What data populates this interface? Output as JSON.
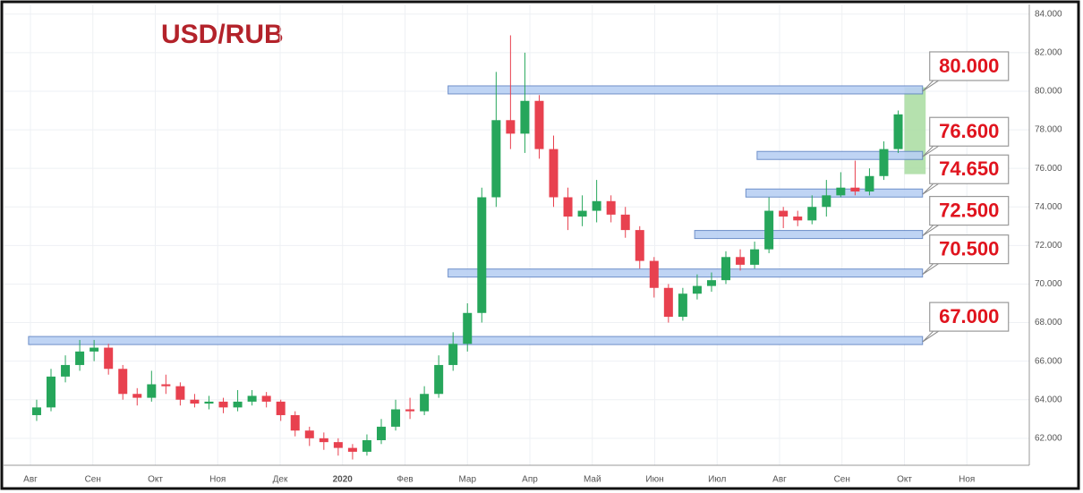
{
  "chart_data": {
    "type": "candlestick",
    "title": "USD/RUB",
    "up_color": "#26a65b",
    "down_color": "#e8414f",
    "x": [
      0.1,
      0.33,
      0.56,
      0.79,
      1.02,
      1.25,
      1.48,
      1.71,
      1.94,
      2.17,
      2.4,
      2.63,
      2.86,
      3.09,
      3.32,
      3.55,
      3.78,
      4.01,
      4.24,
      4.47,
      4.7,
      4.93,
      5.16,
      5.39,
      5.62,
      5.85,
      6.08,
      6.31,
      6.54,
      6.77,
      7.0,
      7.23,
      7.46,
      7.69,
      7.92,
      8.15,
      8.38,
      8.61,
      8.84,
      9.07,
      9.3,
      9.53,
      9.76,
      9.99,
      10.22,
      10.45,
      10.68,
      10.91,
      11.14,
      11.37,
      11.6,
      11.83,
      12.06,
      12.29,
      12.52,
      12.75,
      12.98,
      13.21,
      13.44,
      13.67,
      13.9
    ],
    "open": [
      63.2,
      63.6,
      65.2,
      65.8,
      66.5,
      66.7,
      65.6,
      64.3,
      64.1,
      64.8,
      64.7,
      64.0,
      63.8,
      63.9,
      63.6,
      63.9,
      64.2,
      63.9,
      63.2,
      62.4,
      62.0,
      61.8,
      61.5,
      61.3,
      61.9,
      62.6,
      63.5,
      63.4,
      64.3,
      65.8,
      66.9,
      68.5,
      74.5,
      78.5,
      77.8,
      79.5,
      77.0,
      74.5,
      73.5,
      73.8,
      74.3,
      73.6,
      72.8,
      71.2,
      69.8,
      68.3,
      69.5,
      69.9,
      70.2,
      71.4,
      71.0,
      71.8,
      73.8,
      73.5,
      73.3,
      74.0,
      74.6,
      75.0,
      74.8,
      75.6,
      77.0
    ],
    "high": [
      64.0,
      65.6,
      66.3,
      67.1,
      67.1,
      66.9,
      65.8,
      64.6,
      65.5,
      65.3,
      64.9,
      64.3,
      64.2,
      64.1,
      64.5,
      64.5,
      64.4,
      64.0,
      63.4,
      62.6,
      62.3,
      62.0,
      61.7,
      62.2,
      63.0,
      64.0,
      64.1,
      64.7,
      66.3,
      67.5,
      69.0,
      75.0,
      81.0,
      82.9,
      82.0,
      79.8,
      77.7,
      75.0,
      74.6,
      75.4,
      74.6,
      74.0,
      73.0,
      71.4,
      70.0,
      69.8,
      70.5,
      70.6,
      71.7,
      71.8,
      72.2,
      74.5,
      74.0,
      73.8,
      74.6,
      75.4,
      75.8,
      76.4,
      76.0,
      77.4,
      79.0
    ],
    "low": [
      62.9,
      63.4,
      64.9,
      65.5,
      66.0,
      65.3,
      64.0,
      63.7,
      63.9,
      64.3,
      63.7,
      63.6,
      63.5,
      63.3,
      63.4,
      63.7,
      63.6,
      62.9,
      62.1,
      61.6,
      61.4,
      61.1,
      60.9,
      61.1,
      61.7,
      62.4,
      63.0,
      63.2,
      64.1,
      65.5,
      66.5,
      68.0,
      74.0,
      77.0,
      76.8,
      76.5,
      74.0,
      72.8,
      73.0,
      73.2,
      73.2,
      72.4,
      70.8,
      69.3,
      68.0,
      68.1,
      69.2,
      69.6,
      70.0,
      70.7,
      70.8,
      71.6,
      72.9,
      73.0,
      73.1,
      73.5,
      74.5,
      74.6,
      74.6,
      75.4,
      76.8
    ],
    "close": [
      63.6,
      65.2,
      65.8,
      66.5,
      66.7,
      65.6,
      64.3,
      64.1,
      64.8,
      64.7,
      64.0,
      63.8,
      63.9,
      63.6,
      63.9,
      64.2,
      63.9,
      63.2,
      62.4,
      62.0,
      61.8,
      61.5,
      61.3,
      61.9,
      62.6,
      63.5,
      63.4,
      64.3,
      65.8,
      66.9,
      68.5,
      74.5,
      78.5,
      77.8,
      79.5,
      77.0,
      74.5,
      73.5,
      73.8,
      74.3,
      73.6,
      72.8,
      71.2,
      69.8,
      68.3,
      69.5,
      69.9,
      70.2,
      71.4,
      71.0,
      71.8,
      73.8,
      73.5,
      73.3,
      74.0,
      74.6,
      75.0,
      74.8,
      75.6,
      77.0,
      78.8
    ],
    "xlim": [
      -0.43,
      16.0
    ],
    "xticks": [
      {
        "value": 0,
        "label": "Авг"
      },
      {
        "value": 1,
        "label": "Сен"
      },
      {
        "value": 2,
        "label": "Окт"
      },
      {
        "value": 3,
        "label": "Ноя"
      },
      {
        "value": 4,
        "label": "Дек"
      },
      {
        "value": 5,
        "label": "2020"
      },
      {
        "value": 6,
        "label": "Фев"
      },
      {
        "value": 7,
        "label": "Мар"
      },
      {
        "value": 8,
        "label": "Апр"
      },
      {
        "value": 9,
        "label": "Май"
      },
      {
        "value": 10,
        "label": "Июн"
      },
      {
        "value": 11,
        "label": "Июл"
      },
      {
        "value": 12,
        "label": "Авг"
      },
      {
        "value": 13,
        "label": "Сен"
      },
      {
        "value": 14,
        "label": "Окт"
      },
      {
        "value": 15,
        "label": "Ноя"
      }
    ],
    "ylim": [
      60.6,
      84.5
    ],
    "yticks": [
      {
        "value": 62,
        "label": "62.000"
      },
      {
        "value": 64,
        "label": "64.000"
      },
      {
        "value": 66,
        "label": "66.000"
      },
      {
        "value": 68,
        "label": "68.000"
      },
      {
        "value": 70,
        "label": "70.000"
      },
      {
        "value": 72,
        "label": "72.000"
      },
      {
        "value": 74,
        "label": "74.000"
      },
      {
        "value": 76,
        "label": "76.000"
      },
      {
        "value": 78,
        "label": "78.000"
      },
      {
        "value": 80,
        "label": "80.000"
      },
      {
        "value": 82,
        "label": "82.000"
      },
      {
        "value": 84,
        "label": "84.000"
      }
    ],
    "grid": true,
    "levels": [
      {
        "value": 80,
        "label": "80.000",
        "x_start": 6.69
      },
      {
        "value": 76.6,
        "label": "76.600",
        "x_start": 11.64
      },
      {
        "value": 74.65,
        "label": "74.650",
        "x_start": 11.46
      },
      {
        "value": 72.5,
        "label": "72.500",
        "x_start": 10.64
      },
      {
        "value": 70.5,
        "label": "70.500",
        "x_start": 6.69
      },
      {
        "value": 67,
        "label": "67.000",
        "x_start": -0.03
      }
    ],
    "levels_x_end": 14.29,
    "level_color": "#b9d0f3",
    "highlight": {
      "x": [
        14.0,
        14.34
      ],
      "y": [
        75.7,
        80.2
      ],
      "color": "#a8dca0"
    }
  }
}
